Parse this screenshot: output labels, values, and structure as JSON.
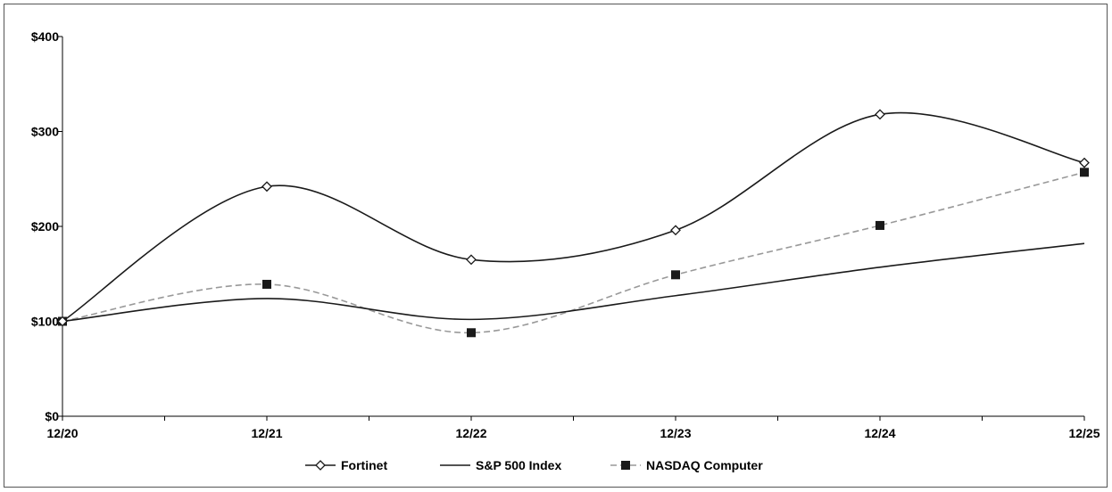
{
  "chart_data": {
    "type": "line",
    "x": [
      "12/20",
      "12/21",
      "12/22",
      "12/23",
      "12/24",
      "12/25"
    ],
    "yticks": [
      "$0",
      "$100",
      "$200",
      "$300",
      "$400"
    ],
    "ylim": [
      0,
      400
    ],
    "grid": false,
    "legend_position": "bottom",
    "series": [
      {
        "name": "Fortinet",
        "values": [
          100,
          242,
          165,
          196,
          318,
          267
        ],
        "color": "#1a1a1a",
        "marker": "open-diamond",
        "dash": "solid"
      },
      {
        "name": "S&P 500 Index",
        "values": [
          100,
          124,
          102,
          127,
          157,
          182
        ],
        "color": "#1a1a1a",
        "marker": "none",
        "dash": "solid"
      },
      {
        "name": "NASDAQ Computer",
        "values": [
          100,
          139,
          88,
          149,
          201,
          257
        ],
        "color": "#999999",
        "marker": "filled-square",
        "dash": "dashed"
      }
    ]
  }
}
